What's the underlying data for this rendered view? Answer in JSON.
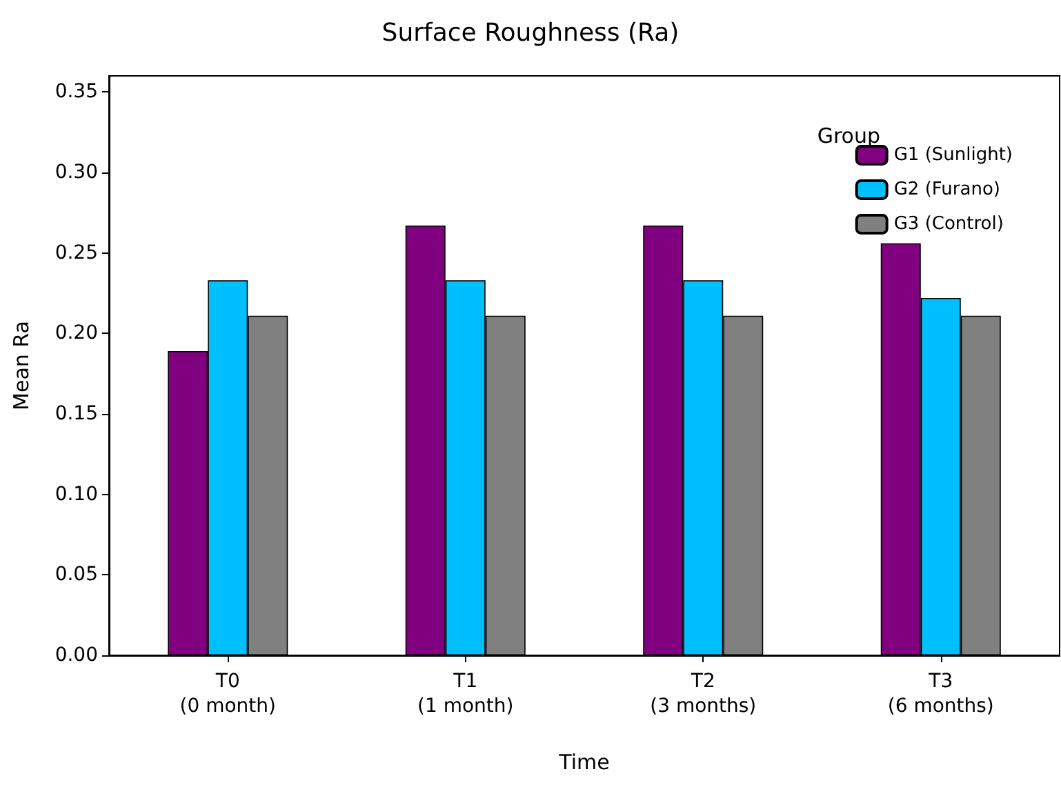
{
  "chart_data": {
    "type": "bar",
    "title": "Surface Roughness (Ra)",
    "xlabel": "Time",
    "ylabel": "Mean Ra",
    "legend_title": "Group",
    "categories": [
      "T0\n(0 month)",
      "T1\n(1 month)",
      "T2\n(3 months)",
      "T3\n(6 months)"
    ],
    "series": [
      {
        "name": "G1 (Sunlight)",
        "color": "#800080",
        "values": [
          0.189,
          0.267,
          0.267,
          0.256
        ]
      },
      {
        "name": "G2 (Furano)",
        "color": "#00bfff",
        "values": [
          0.233,
          0.233,
          0.233,
          0.222
        ]
      },
      {
        "name": "G3 (Control)",
        "color": "#808080",
        "values": [
          0.211,
          0.211,
          0.211,
          0.211
        ]
      }
    ],
    "ylim": [
      0,
      0.36
    ],
    "yticks": [
      {
        "value": 0,
        "label": "0.00"
      },
      {
        "value": 0.05,
        "label": "0.05"
      },
      {
        "value": 0.1,
        "label": "0.10"
      },
      {
        "value": 0.15,
        "label": "0.15"
      },
      {
        "value": 0.2,
        "label": "0.20"
      },
      {
        "value": 0.25,
        "label": "0.25"
      },
      {
        "value": 0.3,
        "label": "0.30"
      },
      {
        "value": 0.35,
        "label": "0.35"
      }
    ],
    "grid": false,
    "legend": "top right"
  }
}
